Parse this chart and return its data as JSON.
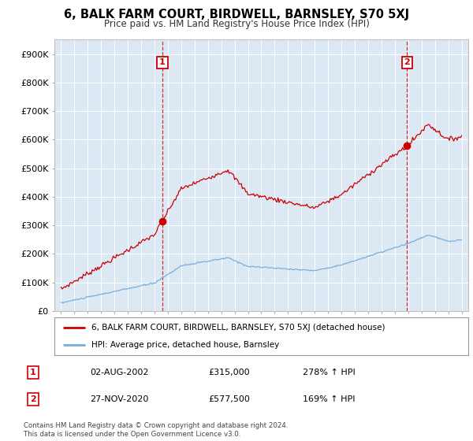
{
  "title": "6, BALK FARM COURT, BIRDWELL, BARNSLEY, S70 5XJ",
  "subtitle": "Price paid vs. HM Land Registry's House Price Index (HPI)",
  "ylim": [
    0,
    950000
  ],
  "yticks": [
    0,
    100000,
    200000,
    300000,
    400000,
    500000,
    600000,
    700000,
    800000,
    900000
  ],
  "ytick_labels": [
    "£0",
    "£100K",
    "£200K",
    "£300K",
    "£400K",
    "£500K",
    "£600K",
    "£700K",
    "£800K",
    "£900K"
  ],
  "plot_bg_color": "#dce9f5",
  "fig_bg_color": "#ffffff",
  "sale1_date": 2002.583,
  "sale1_price": 315000,
  "sale2_date": 2020.917,
  "sale2_price": 577500,
  "legend_line1": "6, BALK FARM COURT, BIRDWELL, BARNSLEY, S70 5XJ (detached house)",
  "legend_line2": "HPI: Average price, detached house, Barnsley",
  "annotation1_date": "02-AUG-2002",
  "annotation1_price": "£315,000",
  "annotation1_hpi": "278% ↑ HPI",
  "annotation2_date": "27-NOV-2020",
  "annotation2_price": "£577,500",
  "annotation2_hpi": "169% ↑ HPI",
  "footer": "Contains HM Land Registry data © Crown copyright and database right 2024.\nThis data is licensed under the Open Government Licence v3.0.",
  "red_color": "#cc0000",
  "blue_color": "#7aaddb",
  "grid_color": "#ffffff"
}
